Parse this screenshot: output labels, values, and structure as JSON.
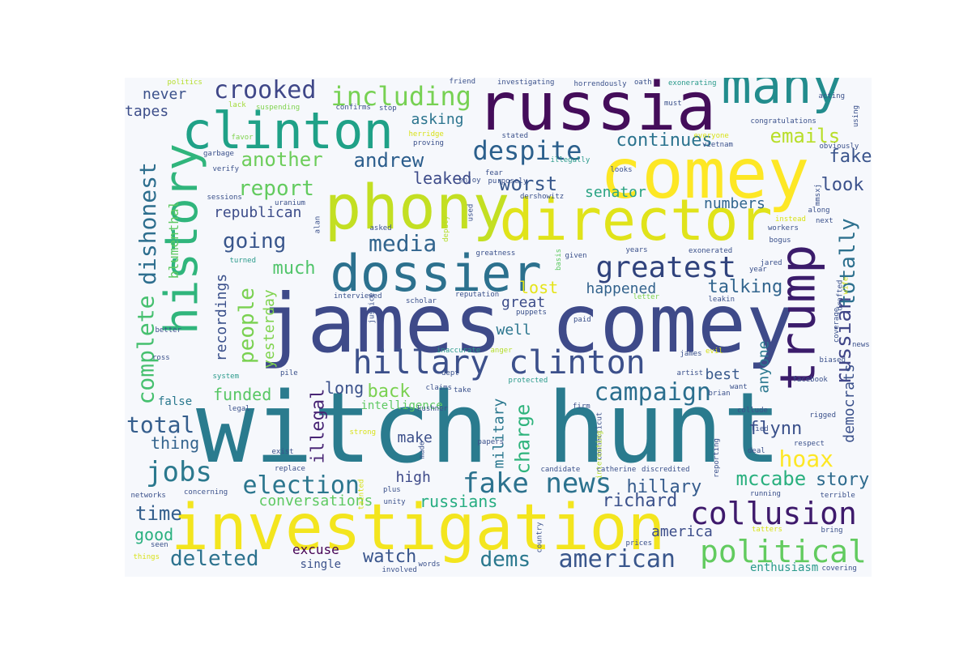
{
  "wordcloud": {
    "colormap": [
      "#440154",
      "#3b528b",
      "#21918c",
      "#5ec962",
      "#fde725"
    ],
    "background": "#f6f8fc",
    "words": [
      {
        "text": "witch hunt",
        "color": "#2a7b8e",
        "rotated": false
      },
      {
        "text": "james comey",
        "color": "#3e4a89",
        "rotated": false
      },
      {
        "text": "investigation",
        "color": "#f3e51e",
        "rotated": false
      },
      {
        "text": "russia",
        "color": "#440d5a",
        "rotated": false
      },
      {
        "text": "comey",
        "color": "#fde725",
        "rotated": false
      },
      {
        "text": "phony",
        "color": "#c3df22",
        "rotated": false
      },
      {
        "text": "director",
        "color": "#e0e31a",
        "rotated": false
      },
      {
        "text": "dossier",
        "color": "#2c718e",
        "rotated": false
      },
      {
        "text": "clinton",
        "color": "#1fa187",
        "rotated": false
      },
      {
        "text": "many",
        "color": "#228c8d",
        "rotated": false
      },
      {
        "text": "trump",
        "color": "#3b1c6b",
        "rotated": true
      },
      {
        "text": "history",
        "color": "#30b57c",
        "rotated": true
      },
      {
        "text": "hillary clinton",
        "color": "#3c508b",
        "rotated": false
      },
      {
        "text": "collusion",
        "color": "#3e1a6c",
        "rotated": false
      },
      {
        "text": "political",
        "color": "#62cb5f",
        "rotated": false
      },
      {
        "text": "fake news",
        "color": "#2c728e",
        "rotated": false
      },
      {
        "text": "greatest",
        "color": "#30437d",
        "rotated": false
      },
      {
        "text": "despite",
        "color": "#2b5f8c",
        "rotated": false
      },
      {
        "text": "including",
        "color": "#77d153",
        "rotated": false
      },
      {
        "text": "crooked",
        "color": "#3f4788",
        "rotated": false
      },
      {
        "text": "american",
        "color": "#39568c",
        "rotated": false
      },
      {
        "text": "election",
        "color": "#2b768e",
        "rotated": false
      },
      {
        "text": "campaign",
        "color": "#2a6e8e",
        "rotated": false
      },
      {
        "text": "media",
        "color": "#32658e",
        "rotated": false
      },
      {
        "text": "jobs",
        "color": "#2b798e",
        "rotated": false
      },
      {
        "text": "dishonest",
        "color": "#2d6e8e",
        "rotated": true
      },
      {
        "text": "complete",
        "color": "#46c06f",
        "rotated": true
      },
      {
        "text": "report",
        "color": "#63cb5f",
        "rotated": false
      },
      {
        "text": "going",
        "color": "#39568c",
        "rotated": false
      },
      {
        "text": "people",
        "color": "#7ad151",
        "rotated": true
      },
      {
        "text": "hoax",
        "color": "#fde725",
        "rotated": false
      },
      {
        "text": "russian",
        "color": "#404688",
        "rotated": true
      },
      {
        "text": "totally",
        "color": "#2d708e",
        "rotated": true
      },
      {
        "text": "emails",
        "color": "#b8de29",
        "rotated": false
      },
      {
        "text": "continues",
        "color": "#2b738e",
        "rotated": false
      },
      {
        "text": "andrew",
        "color": "#2b5d8c",
        "rotated": false
      },
      {
        "text": "another",
        "color": "#6ccd5a",
        "rotated": false
      },
      {
        "text": "worst",
        "color": "#38588c",
        "rotated": false
      },
      {
        "text": "leaked",
        "color": "#3e4c8a",
        "rotated": false
      },
      {
        "text": "fake",
        "color": "#3a548c",
        "rotated": false
      },
      {
        "text": "look",
        "color": "#3b518b",
        "rotated": false
      },
      {
        "text": "senator",
        "color": "#2aa383",
        "rotated": false
      },
      {
        "text": "numbers",
        "color": "#31668e",
        "rotated": false
      },
      {
        "text": "republican",
        "color": "#3d4d8a",
        "rotated": false
      },
      {
        "text": "much",
        "color": "#50c46a",
        "rotated": false
      },
      {
        "text": "talking",
        "color": "#32658e",
        "rotated": false
      },
      {
        "text": "happened",
        "color": "#33638d",
        "rotated": false
      },
      {
        "text": "lost",
        "color": "#e5e419",
        "rotated": false
      },
      {
        "text": "mccabe",
        "color": "#2ab07f",
        "rotated": false
      },
      {
        "text": "story",
        "color": "#2e6b8e",
        "rotated": false
      },
      {
        "text": "richard",
        "color": "#3b518b",
        "rotated": false
      },
      {
        "text": "hillary",
        "color": "#365c8d",
        "rotated": false
      },
      {
        "text": "dems",
        "color": "#2a788e",
        "rotated": false
      },
      {
        "text": "watch",
        "color": "#39558c",
        "rotated": false
      },
      {
        "text": "deleted",
        "color": "#2c728e",
        "rotated": false
      },
      {
        "text": "time",
        "color": "#345f8d",
        "rotated": false
      },
      {
        "text": "good",
        "color": "#2ab07f",
        "rotated": false
      },
      {
        "text": "total",
        "color": "#355e8d",
        "rotated": false
      },
      {
        "text": "thing",
        "color": "#33638d",
        "rotated": false
      },
      {
        "text": "funded",
        "color": "#58c765",
        "rotated": false
      },
      {
        "text": "back",
        "color": "#7ad151",
        "rotated": false
      },
      {
        "text": "long",
        "color": "#3b528b",
        "rotated": false
      },
      {
        "text": "illegal",
        "color": "#482575",
        "rotated": true
      },
      {
        "text": "charge",
        "color": "#2eb37c",
        "rotated": true
      },
      {
        "text": "military",
        "color": "#2a778e",
        "rotated": true
      },
      {
        "text": "best",
        "color": "#38598c",
        "rotated": false
      },
      {
        "text": "anyone",
        "color": "#2a778e",
        "rotated": true
      },
      {
        "text": "democrats",
        "color": "#3b518b",
        "rotated": true
      },
      {
        "text": "flynn",
        "color": "#3b518b",
        "rotated": false
      },
      {
        "text": "america",
        "color": "#3d4e8a",
        "rotated": false
      },
      {
        "text": "conversations",
        "color": "#5ec962",
        "rotated": false
      },
      {
        "text": "russians",
        "color": "#26ad81",
        "rotated": false
      },
      {
        "text": "high",
        "color": "#3e4a89",
        "rotated": false
      },
      {
        "text": "make",
        "color": "#3c4f8a",
        "rotated": false
      },
      {
        "text": "excuse",
        "color": "#440154",
        "rotated": false
      },
      {
        "text": "great",
        "color": "#3d4d8a",
        "rotated": false
      },
      {
        "text": "well",
        "color": "#2b758e",
        "rotated": false
      },
      {
        "text": "recordings",
        "color": "#3b518b",
        "rotated": true
      },
      {
        "text": "yesterday",
        "color": "#7fd34e",
        "rotated": true
      },
      {
        "text": "blumenthal",
        "color": "#5ec962",
        "rotated": true
      },
      {
        "text": "never",
        "color": "#3b518b",
        "rotated": false
      },
      {
        "text": "tapes",
        "color": "#3d4e8a",
        "rotated": false
      },
      {
        "text": "asking",
        "color": "#2b748e",
        "rotated": false
      },
      {
        "text": "intelligence",
        "color": "#5ec962",
        "rotated": false
      },
      {
        "text": "enthusiasm",
        "color": "#2a9a8b",
        "rotated": false
      },
      {
        "text": "false",
        "color": "#2a788e",
        "rotated": false
      },
      {
        "text": "single",
        "color": "#3b518b",
        "rotated": false
      },
      {
        "text": "politics",
        "color": "#b5de2b",
        "rotated": false
      },
      {
        "text": "lack",
        "color": "#a2da37",
        "rotated": false
      },
      {
        "text": "suspending",
        "color": "#7fd34e",
        "rotated": false
      },
      {
        "text": "confirms",
        "color": "#3b518b",
        "rotated": false
      },
      {
        "text": "stop",
        "color": "#3b518b",
        "rotated": false
      },
      {
        "text": "friend",
        "color": "#3b518b",
        "rotated": false
      },
      {
        "text": "investigating",
        "color": "#3b518b",
        "rotated": false
      },
      {
        "text": "horrendously",
        "color": "#3b518b",
        "rotated": false
      },
      {
        "text": "oath",
        "color": "#3b518b",
        "rotated": false
      },
      {
        "text": "exonerating",
        "color": "#2a9a8b",
        "rotated": false
      },
      {
        "text": "must",
        "color": "#3b518b",
        "rotated": false
      },
      {
        "text": "acting",
        "color": "#3b518b",
        "rotated": false
      },
      {
        "text": "using",
        "color": "#3b518b",
        "rotated": true
      },
      {
        "text": "congratulations",
        "color": "#3b518b",
        "rotated": false
      },
      {
        "text": "herridge",
        "color": "#d8e219",
        "rotated": false
      },
      {
        "text": "stated",
        "color": "#3b518b",
        "rotated": false
      },
      {
        "text": "everyone",
        "color": "#d8e219",
        "rotated": false
      },
      {
        "text": "favor",
        "color": "#7fd34e",
        "rotated": false
      },
      {
        "text": "proving",
        "color": "#3b518b",
        "rotated": false
      },
      {
        "text": "vietnam",
        "color": "#3b518b",
        "rotated": false
      },
      {
        "text": "obviously",
        "color": "#3b518b",
        "rotated": false
      },
      {
        "text": "garbage",
        "color": "#3b518b",
        "rotated": false
      },
      {
        "text": "illegally",
        "color": "#2a9a8b",
        "rotated": false
      },
      {
        "text": "verify",
        "color": "#3b518b",
        "rotated": false
      },
      {
        "text": "fear",
        "color": "#3b518b",
        "rotated": false
      },
      {
        "text": "purposely",
        "color": "#3b518b",
        "rotated": false
      },
      {
        "text": "enjoy",
        "color": "#3b518b",
        "rotated": false
      },
      {
        "text": "looks",
        "color": "#3b518b",
        "rotated": false
      },
      {
        "text": "dershowitz",
        "color": "#3b518b",
        "rotated": false
      },
      {
        "text": "mmsxj",
        "color": "#3b518b",
        "rotated": true
      },
      {
        "text": "sessions",
        "color": "#3b518b",
        "rotated": false
      },
      {
        "text": "uranium",
        "color": "#3b518b",
        "rotated": false
      },
      {
        "text": "used",
        "color": "#3b518b",
        "rotated": true
      },
      {
        "text": "instead",
        "color": "#d8e219",
        "rotated": false
      },
      {
        "text": "next",
        "color": "#3b518b",
        "rotated": false
      },
      {
        "text": "along",
        "color": "#3b518b",
        "rotated": false
      },
      {
        "text": "workers",
        "color": "#3b518b",
        "rotated": false
      },
      {
        "text": "alan",
        "color": "#3b518b",
        "rotated": true
      },
      {
        "text": "asked",
        "color": "#3b518b",
        "rotated": false
      },
      {
        "text": "deputy",
        "color": "#b5de2b",
        "rotated": true
      },
      {
        "text": "bogus",
        "color": "#3b518b",
        "rotated": false
      },
      {
        "text": "turned",
        "color": "#2a9a8b",
        "rotated": false
      },
      {
        "text": "given",
        "color": "#3b518b",
        "rotated": false
      },
      {
        "text": "years",
        "color": "#3b518b",
        "rotated": false
      },
      {
        "text": "greatness",
        "color": "#3b518b",
        "rotated": false
      },
      {
        "text": "basis",
        "color": "#5ec962",
        "rotated": true
      },
      {
        "text": "exonerated",
        "color": "#3b518b",
        "rotated": false
      },
      {
        "text": "jared",
        "color": "#3b518b",
        "rotated": false
      },
      {
        "text": "year",
        "color": "#3b518b",
        "rotated": false
      },
      {
        "text": "wife",
        "color": "#d8e219",
        "rotated": true
      },
      {
        "text": "drafted",
        "color": "#3b518b",
        "rotated": true
      },
      {
        "text": "interviewed",
        "color": "#3b518b",
        "rotated": false
      },
      {
        "text": "scholar",
        "color": "#3b518b",
        "rotated": false
      },
      {
        "text": "reputation",
        "color": "#3b518b",
        "rotated": false
      },
      {
        "text": "justice",
        "color": "#3b518b",
        "rotated": true
      },
      {
        "text": "puppets",
        "color": "#3b518b",
        "rotated": false
      },
      {
        "text": "letter",
        "color": "#7fd34e",
        "rotated": false
      },
      {
        "text": "leakin",
        "color": "#3b518b",
        "rotated": false
      },
      {
        "text": "better",
        "color": "#3b518b",
        "rotated": false
      },
      {
        "text": "paid",
        "color": "#3b518b",
        "rotated": false
      },
      {
        "text": "coverage",
        "color": "#3b518b",
        "rotated": true
      },
      {
        "text": "news",
        "color": "#3b518b",
        "rotated": false
      },
      {
        "text": "ross",
        "color": "#3b518b",
        "rotated": false
      },
      {
        "text": "inaccurate",
        "color": "#2a9a8b",
        "rotated": false
      },
      {
        "text": "anger",
        "color": "#b5de2b",
        "rotated": false
      },
      {
        "text": "james",
        "color": "#3b518b",
        "rotated": false
      },
      {
        "text": "evil",
        "color": "#d8e219",
        "rotated": false
      },
      {
        "text": "biased",
        "color": "#3b518b",
        "rotated": false
      },
      {
        "text": "system",
        "color": "#2a9a8b",
        "rotated": false
      },
      {
        "text": "pile",
        "color": "#3b518b",
        "rotated": false
      },
      {
        "text": "dept",
        "color": "#3b518b",
        "rotated": false
      },
      {
        "text": "protected",
        "color": "#2a9a8b",
        "rotated": false
      },
      {
        "text": "artist",
        "color": "#3b518b",
        "rotated": false
      },
      {
        "text": "facebook",
        "color": "#3b518b",
        "rotated": false
      },
      {
        "text": "claims",
        "color": "#3b518b",
        "rotated": false
      },
      {
        "text": "take",
        "color": "#3b518b",
        "rotated": false
      },
      {
        "text": "brian",
        "color": "#3b518b",
        "rotated": false
      },
      {
        "text": "want",
        "color": "#3b518b",
        "rotated": false
      },
      {
        "text": "legal",
        "color": "#3b518b",
        "rotated": false
      },
      {
        "text": "kushner",
        "color": "#3b518b",
        "rotated": false
      },
      {
        "text": "firm",
        "color": "#3b518b",
        "rotated": false
      },
      {
        "text": "collude",
        "color": "#3b518b",
        "rotated": false
      },
      {
        "text": "rigged",
        "color": "#3b518b",
        "rotated": false
      },
      {
        "text": "lied",
        "color": "#3b518b",
        "rotated": false
      },
      {
        "text": "connecticut",
        "color": "#3b518b",
        "rotated": true
      },
      {
        "text": "strong",
        "color": "#d8e219",
        "rotated": false
      },
      {
        "text": "papers",
        "color": "#3b518b",
        "rotated": false
      },
      {
        "text": "interesting",
        "color": "#b5de2b",
        "rotated": true
      },
      {
        "text": "reporting",
        "color": "#3b518b",
        "rotated": true
      },
      {
        "text": "deal",
        "color": "#3b518b",
        "rotated": false
      },
      {
        "text": "respect",
        "color": "#3b518b",
        "rotated": false
      },
      {
        "text": "exist",
        "color": "#3b518b",
        "rotated": false
      },
      {
        "text": "made",
        "color": "#3b518b",
        "rotated": true
      },
      {
        "text": "replace",
        "color": "#3b518b",
        "rotated": false
      },
      {
        "text": "candidate",
        "color": "#3b518b",
        "rotated": false
      },
      {
        "text": "catherine",
        "color": "#3b518b",
        "rotated": false
      },
      {
        "text": "discredited",
        "color": "#3b518b",
        "rotated": false
      },
      {
        "text": "networks",
        "color": "#3b518b",
        "rotated": false
      },
      {
        "text": "concerning",
        "color": "#3b518b",
        "rotated": false
      },
      {
        "text": "tainted",
        "color": "#d8e219",
        "rotated": true
      },
      {
        "text": "plus",
        "color": "#3b518b",
        "rotated": false
      },
      {
        "text": "running",
        "color": "#3b518b",
        "rotated": false
      },
      {
        "text": "terrible",
        "color": "#3b518b",
        "rotated": false
      },
      {
        "text": "unity",
        "color": "#3b518b",
        "rotated": false
      },
      {
        "text": "country",
        "color": "#3b518b",
        "rotated": true
      },
      {
        "text": "prices",
        "color": "#3b518b",
        "rotated": false
      },
      {
        "text": "tatters",
        "color": "#d8e219",
        "rotated": false
      },
      {
        "text": "bring",
        "color": "#3b518b",
        "rotated": false
      },
      {
        "text": "seen",
        "color": "#3b518b",
        "rotated": false
      },
      {
        "text": "things",
        "color": "#d8e219",
        "rotated": false
      },
      {
        "text": "words",
        "color": "#3b518b",
        "rotated": false
      },
      {
        "text": "involved",
        "color": "#3b518b",
        "rotated": false
      },
      {
        "text": "covering",
        "color": "#3b518b",
        "rotated": false
      }
    ]
  }
}
